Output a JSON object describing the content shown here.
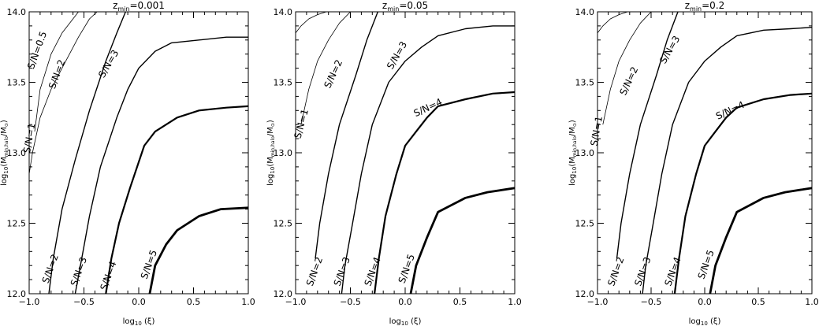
{
  "chart_data": [
    {
      "type": "line",
      "title": "z",
      "title_subscript": "min",
      "title_value": "=0.001",
      "xlabel_main": "log",
      "xlabel_sub": "10",
      "xlabel_arg": " (ξ)",
      "ylabel_main": "log",
      "ylabel_sub": "10",
      "ylabel_paren_open": "(M",
      "ylabel_mass_sub": "min,halo",
      "ylabel_tail": "/M",
      "ylabel_sun_sub": "⊙",
      "ylabel_close": ")",
      "xlim": [
        -1.0,
        1.0
      ],
      "ylim": [
        12.0,
        14.0
      ],
      "x_ticks": [
        "−1.0",
        "−0.5",
        "0.0",
        "0.5",
        "1.0"
      ],
      "y_ticks": [
        "12.0",
        "12.5",
        "13.0",
        "13.5",
        "14.0"
      ],
      "series": [
        {
          "name": "S/N=0.5",
          "x": [
            -0.95,
            -0.9,
            -0.8,
            -0.7,
            -0.6,
            -0.55
          ],
          "y": [
            13.15,
            13.45,
            13.7,
            13.85,
            13.95,
            14.0
          ]
        },
        {
          "name": "S/N=1",
          "x": [
            -1.0,
            -0.97,
            -0.9,
            -0.8,
            -0.7,
            -0.55,
            -0.45,
            -0.38
          ],
          "y": [
            12.85,
            13.0,
            13.25,
            13.45,
            13.6,
            13.82,
            13.95,
            14.0
          ]
        },
        {
          "name": "S/N=2",
          "x": [
            -0.82,
            -0.78,
            -0.7,
            -0.58,
            -0.45,
            -0.3,
            -0.2,
            -0.12
          ],
          "y": [
            12.0,
            12.25,
            12.6,
            12.95,
            13.3,
            13.65,
            13.85,
            14.0
          ]
        },
        {
          "name": "S/N=3",
          "x": [
            -0.58,
            -0.52,
            -0.45,
            -0.35,
            -0.2,
            -0.1,
            0.0,
            0.15,
            0.3,
            0.55,
            0.8,
            1.0
          ],
          "y": [
            12.0,
            12.25,
            12.55,
            12.9,
            13.25,
            13.45,
            13.6,
            13.72,
            13.78,
            13.8,
            13.82,
            13.82
          ]
        },
        {
          "name": "S/N=4",
          "x": [
            -0.3,
            -0.25,
            -0.18,
            -0.08,
            0.05,
            0.15,
            0.35,
            0.55,
            0.8,
            1.0
          ],
          "y": [
            12.0,
            12.25,
            12.5,
            12.75,
            13.05,
            13.15,
            13.25,
            13.3,
            13.32,
            13.33
          ],
          "stroke": 2.2
        },
        {
          "name": "S/N=5",
          "x": [
            0.1,
            0.15,
            0.25,
            0.35,
            0.55,
            0.75,
            1.0
          ],
          "y": [
            12.0,
            12.2,
            12.35,
            12.45,
            12.55,
            12.6,
            12.61
          ],
          "stroke": 2.8
        }
      ],
      "annotations": [
        {
          "text": "S/N=0.5",
          "x": -0.9,
          "y": 13.72,
          "angle": -70
        },
        {
          "text": "S/N=1",
          "x": -0.97,
          "y": 13.1,
          "angle": -80
        },
        {
          "text": "S/N=2",
          "x": -0.72,
          "y": 13.55,
          "angle": -70
        },
        {
          "text": "S/N=3",
          "x": -0.25,
          "y": 13.62,
          "angle": -60
        },
        {
          "text": "S/N=2",
          "x": -0.78,
          "y": 12.17,
          "angle": -70
        },
        {
          "text": "S/N=3",
          "x": -0.52,
          "y": 12.15,
          "angle": -70
        },
        {
          "text": "S/N=4",
          "x": -0.25,
          "y": 12.12,
          "angle": -70
        },
        {
          "text": "S/N=5",
          "x": 0.12,
          "y": 12.2,
          "angle": -70
        }
      ]
    },
    {
      "type": "line",
      "title": "z",
      "title_subscript": "min",
      "title_value": "=0.05",
      "xlabel_main": "log",
      "xlabel_sub": "10",
      "xlabel_arg": " (ξ)",
      "ylabel_main": "log",
      "ylabel_sub": "10",
      "ylabel_paren_open": "(M",
      "ylabel_mass_sub": "min,halo",
      "ylabel_tail": "/M",
      "ylabel_sun_sub": "⊙",
      "ylabel_close": ")",
      "xlim": [
        -1.0,
        1.0
      ],
      "ylim": [
        12.0,
        14.0
      ],
      "x_ticks": [
        "−1.0",
        "−0.5",
        "0.0",
        "0.5",
        "1.0"
      ],
      "y_ticks": [
        "12.0",
        "12.5",
        "13.0",
        "13.5",
        "14.0"
      ],
      "series": [
        {
          "name": "S/N=0.5",
          "x": [
            -1.0,
            -0.95,
            -0.88,
            -0.8,
            -0.72
          ],
          "y": [
            13.85,
            13.9,
            13.95,
            13.98,
            14.0
          ]
        },
        {
          "name": "S/N=1",
          "x": [
            -0.95,
            -0.88,
            -0.8,
            -0.7,
            -0.6,
            -0.5
          ],
          "y": [
            13.2,
            13.45,
            13.65,
            13.8,
            13.92,
            14.0
          ]
        },
        {
          "name": "S/N=2",
          "x": [
            -0.82,
            -0.78,
            -0.7,
            -0.6,
            -0.45,
            -0.35,
            -0.25
          ],
          "y": [
            12.25,
            12.5,
            12.85,
            13.2,
            13.55,
            13.8,
            14.0
          ]
        },
        {
          "name": "S/N=3",
          "x": [
            -0.58,
            -0.55,
            -0.48,
            -0.4,
            -0.3,
            -0.15,
            0.0,
            0.15,
            0.3,
            0.55,
            0.8,
            1.0
          ],
          "y": [
            12.0,
            12.2,
            12.5,
            12.85,
            13.2,
            13.5,
            13.65,
            13.75,
            13.83,
            13.88,
            13.9,
            13.9
          ]
        },
        {
          "name": "S/N=4",
          "x": [
            -0.28,
            -0.24,
            -0.18,
            -0.08,
            0.0,
            0.1,
            0.2,
            0.3,
            0.55,
            0.8,
            1.0
          ],
          "y": [
            12.0,
            12.25,
            12.55,
            12.85,
            13.05,
            13.15,
            13.25,
            13.33,
            13.38,
            13.42,
            13.43
          ],
          "stroke": 2.2
        },
        {
          "name": "S/N=5",
          "x": [
            0.05,
            0.1,
            0.2,
            0.3,
            0.55,
            0.75,
            1.0
          ],
          "y": [
            12.0,
            12.2,
            12.4,
            12.58,
            12.68,
            12.72,
            12.75
          ],
          "stroke": 2.8
        }
      ],
      "annotations": [
        {
          "text": "S/N=1",
          "x": -0.92,
          "y": 13.2,
          "angle": -75
        },
        {
          "text": "S/N=2",
          "x": -0.63,
          "y": 13.55,
          "angle": -65
        },
        {
          "text": "S/N=3",
          "x": -0.05,
          "y": 13.68,
          "angle": -60
        },
        {
          "text": "S/N=4",
          "x": 0.22,
          "y": 13.3,
          "angle": -25
        },
        {
          "text": "S/N=2",
          "x": -0.8,
          "y": 12.15,
          "angle": -70
        },
        {
          "text": "S/N=3",
          "x": -0.55,
          "y": 12.15,
          "angle": -70
        },
        {
          "text": "S/N=4",
          "x": -0.27,
          "y": 12.15,
          "angle": -70
        },
        {
          "text": "S/N=5",
          "x": 0.04,
          "y": 12.17,
          "angle": -70
        }
      ]
    },
    {
      "type": "line",
      "title": "z",
      "title_subscript": "min",
      "title_value": "=0.2",
      "xlabel_main": "log",
      "xlabel_sub": "10",
      "xlabel_arg": " (ξ)",
      "ylabel_main": "log",
      "ylabel_sub": "10",
      "ylabel_paren_open": "(M",
      "ylabel_mass_sub": "min,halo",
      "ylabel_tail": "/M",
      "ylabel_sun_sub": "⊙",
      "ylabel_close": ")",
      "xlim": [
        -1.0,
        1.0
      ],
      "ylim": [
        12.0,
        14.0
      ],
      "x_ticks": [
        "−1.0",
        "−0.5",
        "0.0",
        "0.5",
        "1.0"
      ],
      "y_ticks": [
        "12.0",
        "12.5",
        "13.0",
        "13.5",
        "14.0"
      ],
      "series": [
        {
          "name": "S/N=0.5",
          "x": [
            -1.0,
            -0.95,
            -0.88,
            -0.8,
            -0.72
          ],
          "y": [
            13.85,
            13.9,
            13.95,
            13.98,
            14.0
          ]
        },
        {
          "name": "S/N=1",
          "x": [
            -0.95,
            -0.88,
            -0.8,
            -0.7,
            -0.6,
            -0.5
          ],
          "y": [
            13.2,
            13.45,
            13.65,
            13.8,
            13.92,
            14.0
          ]
        },
        {
          "name": "S/N=2",
          "x": [
            -0.82,
            -0.78,
            -0.7,
            -0.6,
            -0.45,
            -0.35,
            -0.25
          ],
          "y": [
            12.25,
            12.5,
            12.85,
            13.2,
            13.55,
            13.8,
            14.0
          ]
        },
        {
          "name": "S/N=3",
          "x": [
            -0.58,
            -0.55,
            -0.48,
            -0.4,
            -0.3,
            -0.15,
            0.0,
            0.15,
            0.3,
            0.55,
            0.8,
            1.0
          ],
          "y": [
            12.0,
            12.2,
            12.5,
            12.85,
            13.2,
            13.5,
            13.65,
            13.75,
            13.83,
            13.87,
            13.88,
            13.89
          ]
        },
        {
          "name": "S/N=4",
          "x": [
            -0.28,
            -0.24,
            -0.18,
            -0.08,
            0.0,
            0.1,
            0.2,
            0.3,
            0.55,
            0.8,
            1.0
          ],
          "y": [
            12.0,
            12.25,
            12.55,
            12.85,
            13.05,
            13.15,
            13.25,
            13.32,
            13.38,
            13.41,
            13.42
          ],
          "stroke": 2.2
        },
        {
          "name": "S/N=5",
          "x": [
            0.05,
            0.1,
            0.2,
            0.3,
            0.55,
            0.75,
            1.0
          ],
          "y": [
            12.0,
            12.2,
            12.4,
            12.58,
            12.68,
            12.72,
            12.75
          ],
          "stroke": 2.8
        }
      ],
      "annotations": [
        {
          "text": "S/N=1",
          "x": -0.98,
          "y": 13.15,
          "angle": -80
        },
        {
          "text": "S/N=2",
          "x": -0.68,
          "y": 13.5,
          "angle": -65
        },
        {
          "text": "S/N=3",
          "x": -0.3,
          "y": 13.72,
          "angle": -60
        },
        {
          "text": "S/N=4",
          "x": 0.25,
          "y": 13.28,
          "angle": -25
        },
        {
          "text": "S/N=2",
          "x": -0.8,
          "y": 12.15,
          "angle": -70
        },
        {
          "text": "S/N=3",
          "x": -0.55,
          "y": 12.15,
          "angle": -70
        },
        {
          "text": "S/N=4",
          "x": -0.27,
          "y": 12.15,
          "angle": -70
        },
        {
          "text": "S/N=5",
          "x": 0.04,
          "y": 12.2,
          "angle": -70
        }
      ]
    }
  ]
}
